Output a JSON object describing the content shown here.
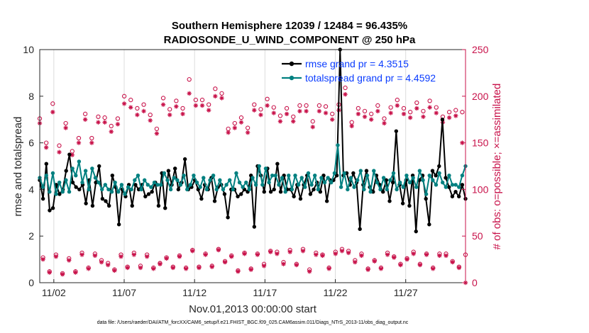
{
  "chart_data": {
    "type": "line",
    "title": [
      "Southern Hemisphere 12039 / 12484 = 96.435%",
      "RADIOSONDE_U_WIND_COMPONENT @ 250 hPa"
    ],
    "xlabel": "Nov.01,2013 00:00:00 start",
    "ylabel": "rmse and totalspread",
    "y2label": "# of obs: o=possible; ×=assimilated",
    "xlim": [
      0,
      30.25
    ],
    "ylim": [
      0,
      10
    ],
    "y2lim": [
      0,
      250
    ],
    "x_ticks": [
      {
        "x": 1,
        "label": "11/02"
      },
      {
        "x": 6,
        "label": "11/07"
      },
      {
        "x": 11,
        "label": "11/12"
      },
      {
        "x": 16,
        "label": "11/17"
      },
      {
        "x": 21,
        "label": "11/22"
      },
      {
        "x": 26,
        "label": "11/27"
      }
    ],
    "y_ticks": [
      0,
      2,
      4,
      6,
      8,
      10
    ],
    "y2_ticks": [
      0,
      50,
      100,
      150,
      200,
      250
    ],
    "footnote": "data file: /Users/raeder/DAI/ATM_forcXX/CAM6_setup/f.e21.FHIST_BGC.f09_025.CAM6assim.011/Diags_NTrS_2013-11/obs_diag_output.nc",
    "colors": {
      "rmse": "#000000",
      "spread": "#008080",
      "obs": "#c8124a",
      "legend_text": "#0a3cff",
      "grid": "#dcdcdc"
    },
    "series": [
      {
        "name": "rmse grand pr = 4.3515",
        "axis": "left",
        "values": [
          4.4,
          3.6,
          5.1,
          3.1,
          3.2,
          4.2,
          3.8,
          4.0,
          4.8,
          5.5,
          4.3,
          4.1,
          4.0,
          4.2,
          3.4,
          4.4,
          3.3,
          4.3,
          5.0,
          3.6,
          3.5,
          3.3,
          4.6,
          4.1,
          2.5,
          4.0,
          3.7,
          4.2,
          3.3,
          4.2,
          4.0,
          4.2,
          3.7,
          3.8,
          3.9,
          4.3,
          3.3,
          4.7,
          3.2,
          4.8,
          4.2,
          4.9,
          4.0,
          4.3,
          5.3,
          4.0,
          4.1,
          4.4,
          4.0,
          3.6,
          4.2,
          4.0,
          4.5,
          3.5,
          4.1,
          4.2,
          3.8,
          2.8,
          4.0,
          4.0,
          3.7,
          3.8,
          4.0,
          3.9,
          4.6,
          2.4,
          5.0,
          4.6,
          3.9,
          4.9,
          3.9,
          4.0,
          5.1,
          3.9,
          4.6,
          4.0,
          4.0,
          3.7,
          4.2,
          3.6,
          4.2,
          4.6,
          3.8,
          4.0,
          4.3,
          3.9,
          4.6,
          3.5,
          4.4,
          4.4,
          4.6,
          10.0,
          4.6,
          4.7,
          4.2,
          4.7,
          4.3,
          2.3,
          4.2,
          4.8,
          4.1,
          3.9,
          4.6,
          4.2,
          3.9,
          4.4,
          3.5,
          4.3,
          6.5,
          4.2,
          3.4,
          4.4,
          3.3,
          4.6,
          2.2,
          4.4,
          4.6,
          3.6,
          2.5,
          4.8,
          4.6,
          5.0,
          7.0,
          4.5,
          4.1,
          3.7,
          3.9,
          3.7,
          4.2,
          3.6
        ],
        "color": "#000000"
      },
      {
        "name": "totalspread grand pr = 4.4592",
        "axis": "left",
        "values": [
          4.5,
          4.1,
          4.6,
          3.9,
          4.7,
          3.8,
          4.3,
          3.9,
          4.4,
          3.9,
          4.9,
          4.6,
          5.2,
          4.3,
          4.8,
          4.0,
          4.9,
          4.5,
          4.3,
          4.0,
          4.2,
          4.0,
          3.9,
          4.3,
          3.9,
          4.2,
          3.8,
          4.1,
          4.0,
          4.4,
          4.6,
          4.0,
          4.4,
          4.2,
          4.1,
          4.3,
          4.2,
          4.2,
          4.7,
          4.4,
          4.0,
          4.5,
          4.4,
          4.2,
          4.6,
          4.0,
          4.2,
          4.6,
          4.3,
          4.1,
          4.5,
          4.0,
          4.4,
          4.6,
          4.0,
          4.4,
          4.0,
          4.2,
          4.4,
          4.0,
          4.7,
          4.3,
          4.1,
          4.3,
          4.0,
          4.5,
          4.2,
          5.0,
          4.2,
          4.9,
          4.3,
          4.6,
          4.6,
          4.2,
          4.5,
          3.9,
          4.6,
          4.0,
          4.6,
          4.2,
          4.5,
          4.1,
          4.7,
          4.2,
          4.6,
          4.0,
          4.5,
          4.3,
          4.5,
          4.3,
          4.7,
          5.9,
          4.1,
          4.7,
          4.0,
          4.5,
          4.1,
          4.4,
          4.8,
          4.0,
          4.6,
          3.9,
          4.8,
          4.3,
          4.0,
          4.5,
          4.0,
          4.4,
          4.7,
          4.0,
          4.3,
          4.1,
          4.6,
          4.3,
          4.5,
          4.1,
          4.8,
          4.4,
          3.8,
          4.6,
          4.4,
          4.2,
          4.7,
          4.3,
          4.1,
          4.6,
          4.2,
          4.2,
          4.1,
          4.6,
          5.0
        ],
        "color": "#008080"
      },
      {
        "name": "obs possible (o)",
        "axis": "right",
        "values": [
          176,
          27,
          150,
          12,
          192,
          30,
          147,
          10,
          171,
          26,
          141,
          12,
          155,
          32,
          181,
          16,
          155,
          31,
          178,
          24,
          177,
          21,
          168,
          14,
          176,
          30,
          200,
          17,
          196,
          32,
          187,
          18,
          191,
          30,
          180,
          16,
          165,
          21,
          198,
          27,
          186,
          17,
          195,
          29,
          187,
          16,
          218,
          35,
          196,
          17,
          196,
          31,
          191,
          18,
          208,
          36,
          203,
          23,
          165,
          29,
          171,
          13,
          177,
          32,
          166,
          15,
          191,
          31,
          186,
          20,
          197,
          34,
          188,
          33,
          179,
          22,
          187,
          35,
          178,
          20,
          190,
          36,
          190,
          14,
          173,
          32,
          190,
          30,
          189,
          16,
          181,
          33,
          191,
          36,
          209,
          34,
          172,
          24,
          187,
          31,
          184,
          15,
          181,
          24,
          190,
          16,
          176,
          32,
          188,
          28,
          196,
          20,
          187,
          26,
          183,
          33,
          193,
          20,
          184,
          31,
          195,
          16,
          188,
          31,
          178,
          31,
          183,
          23,
          185,
          17,
          183,
          30
        ],
        "color": "#c8124a"
      },
      {
        "name": "obs assimilated (x)",
        "axis": "right",
        "values": [
          171,
          25,
          145,
          11,
          183,
          28,
          140,
          9,
          166,
          24,
          137,
          11,
          150,
          30,
          175,
          15,
          150,
          29,
          172,
          22,
          172,
          19,
          162,
          13,
          170,
          28,
          192,
          16,
          188,
          30,
          180,
          16,
          184,
          28,
          174,
          15,
          160,
          20,
          191,
          26,
          180,
          16,
          189,
          28,
          181,
          15,
          203,
          34,
          190,
          16,
          190,
          30,
          185,
          17,
          200,
          35,
          198,
          22,
          161,
          28,
          166,
          12,
          172,
          31,
          161,
          14,
          185,
          30,
          180,
          18,
          190,
          33,
          182,
          31,
          173,
          20,
          181,
          33,
          173,
          19,
          184,
          34,
          184,
          12,
          167,
          30,
          184,
          29,
          182,
          15,
          175,
          31,
          185,
          34,
          202,
          32,
          168,
          22,
          181,
          29,
          178,
          14,
          175,
          23,
          184,
          15,
          171,
          30,
          182,
          27,
          190,
          19,
          181,
          25,
          177,
          31,
          187,
          19,
          178,
          30,
          188,
          15,
          182,
          29,
          172,
          29,
          177,
          22,
          179,
          16,
          150,
          0
        ],
        "color": "#c8124a"
      }
    ],
    "legend": [
      "rmse grand pr = 4.3515",
      "totalspread grand pr = 4.4592"
    ]
  }
}
